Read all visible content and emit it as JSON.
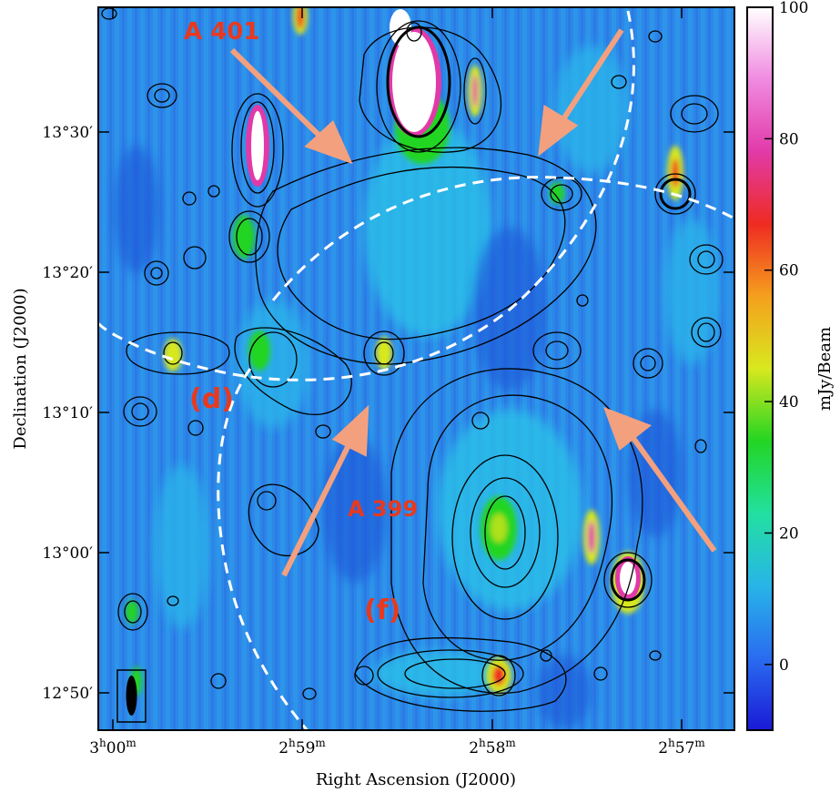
{
  "chart_data": {
    "type": "heatmap",
    "title": "",
    "xlabel": "Right Ascension (J2000)",
    "ylabel": "Declination (J2000)",
    "x_ticks": [
      {
        "h": "3",
        "m": "00"
      },
      {
        "h": "2",
        "m": "59"
      },
      {
        "h": "2",
        "m": "58"
      },
      {
        "h": "2",
        "m": "57"
      }
    ],
    "y_ticks": [
      "13°30′",
      "13°20′",
      "13°10′",
      "13°00′",
      "12°50′"
    ],
    "colorbar": {
      "label": "mJy/Beam",
      "range": [
        -10,
        100
      ],
      "ticks": [
        0,
        20,
        40,
        60,
        80,
        100
      ],
      "colors": [
        "#1a1ad6",
        "#2a6cf0",
        "#28b5e8",
        "#22e0a0",
        "#23d523",
        "#d8e81e",
        "#f5a01d",
        "#ef2b22",
        "#e13aa8",
        "#f08ae0",
        "#ffffff"
      ]
    },
    "annotations": {
      "clusters": [
        "A 401",
        "A 399"
      ],
      "regions": [
        "(d)",
        "(f)"
      ],
      "arrow_color": "#f3a07f",
      "dashed_line_color": "#ffffff"
    },
    "background_color": "#2e87e8",
    "contour_color": "#000000"
  }
}
